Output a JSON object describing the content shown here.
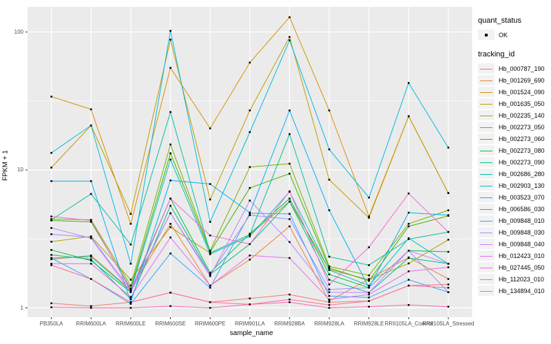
{
  "chart_data": {
    "type": "line",
    "title": "",
    "xlabel": "sample_name",
    "ylabel": "FPKM + 1",
    "y_scale": "log10",
    "ylim": [
      0.85,
      155
    ],
    "y_major_ticks": [
      1,
      10,
      100
    ],
    "y_major_labels": [
      "1",
      "10",
      "100"
    ],
    "y_minor_ticks": [
      3.1623,
      31.623
    ],
    "panel_background": "#EBEBEB",
    "grid_color": "#FFFFFF",
    "marker": {
      "shape": "square",
      "color": "#000000",
      "size": 2.6
    },
    "categories": [
      "PB350LA",
      "RRIM600LA",
      "RRIM600LE",
      "RRIM600SE",
      "RRIM600PE",
      "RRIM901LA",
      "RRIM928BA",
      "RRIM928LA",
      "RRIM928LE",
      "RRII105LA_Control",
      "RRII105LA_Stressed"
    ],
    "series": [
      {
        "name": "Hb_000787_190",
        "color": "#F8766D",
        "values": [
          1.08,
          1.03,
          1.1,
          1.29,
          1.1,
          1.17,
          1.25,
          1.1,
          1.12,
          1.45,
          1.48
        ]
      },
      {
        "name": "Hb_001269_690",
        "color": "#EA8331",
        "values": [
          2.25,
          2.4,
          1.35,
          4.07,
          1.45,
          2.24,
          3.9,
          1.12,
          1.62,
          2.32,
          1.62
        ]
      },
      {
        "name": "Hb_001524_090",
        "color": "#D89000",
        "values": [
          34,
          27.5,
          4.07,
          55,
          20,
          60,
          128,
          27,
          4.6,
          24.5,
          6.8
        ]
      },
      {
        "name": "Hb_001635_050",
        "color": "#C09B00",
        "values": [
          10.4,
          21,
          4.8,
          88,
          6.1,
          27,
          92,
          8.5,
          4.5,
          24.5,
          6.8
        ]
      },
      {
        "name": "Hb_002235_140",
        "color": "#A3A500",
        "values": [
          3.02,
          3.3,
          1.6,
          3.85,
          2.5,
          3.4,
          5.9,
          1.9,
          1.6,
          2.1,
          3.12
        ]
      },
      {
        "name": "Hb_002273_050",
        "color": "#7CAE00",
        "values": [
          4.4,
          4.35,
          1.45,
          15.3,
          2.6,
          10.5,
          11.1,
          2.0,
          1.72,
          4.07,
          5.1
        ]
      },
      {
        "name": "Hb_002273_060",
        "color": "#39B600",
        "values": [
          4.3,
          4.2,
          1.38,
          13.2,
          2.55,
          7.4,
          9.4,
          1.95,
          1.57,
          3.9,
          4.65
        ]
      },
      {
        "name": "Hb_002273_080",
        "color": "#00BB4E",
        "values": [
          2.63,
          2.2,
          1.3,
          6.2,
          1.8,
          3.45,
          6.2,
          1.75,
          1.4,
          2.6,
          2.55
        ]
      },
      {
        "name": "Hb_002273_090",
        "color": "#00BF7D",
        "values": [
          2.42,
          2.25,
          1.16,
          5.5,
          1.75,
          2.9,
          5.9,
          1.6,
          1.29,
          2.3,
          2.09
        ]
      },
      {
        "name": "Hb_002686_280",
        "color": "#00C1A3",
        "values": [
          4.35,
          6.7,
          2.88,
          26.3,
          2.5,
          3.4,
          18.2,
          2.35,
          2.04,
          3.15,
          3.55
        ]
      },
      {
        "name": "Hb_002903_130",
        "color": "#00BFC4",
        "values": [
          2.3,
          2.35,
          1.33,
          11.9,
          2.45,
          3.3,
          6.95,
          1.88,
          1.45,
          3.2,
          2.09
        ]
      },
      {
        "name": "Hb_003523_070",
        "color": "#00BAE0",
        "values": [
          13.3,
          21,
          2.09,
          102,
          4.2,
          18.8,
          87,
          14.1,
          6.3,
          42.7,
          14.5
        ]
      },
      {
        "name": "Hb_006586_030",
        "color": "#00B0F6",
        "values": [
          8.3,
          8.3,
          1.1,
          8.4,
          7.9,
          4.9,
          27,
          5.1,
          1.4,
          4.9,
          4.7
        ]
      },
      {
        "name": "Hb_009848_010",
        "color": "#35A2FF",
        "values": [
          2.3,
          1.62,
          1.07,
          2.48,
          1.4,
          4.85,
          4.8,
          1.22,
          1.19,
          1.6,
          1.3
        ]
      },
      {
        "name": "Hb_009848_030",
        "color": "#9590FF",
        "values": [
          3.42,
          3.25,
          1.35,
          4.85,
          1.75,
          4.7,
          4.4,
          1.36,
          1.4,
          2.6,
          1.3
        ]
      },
      {
        "name": "Hb_009848_040",
        "color": "#C77CFF",
        "values": [
          3.8,
          3.2,
          1.3,
          4.85,
          1.7,
          6.0,
          3.0,
          1.3,
          1.29,
          2.6,
          2.09
        ]
      },
      {
        "name": "Hb_012423_010",
        "color": "#E76BF3",
        "values": [
          2.09,
          2.09,
          1.2,
          3.24,
          1.45,
          2.4,
          2.3,
          1.15,
          1.25,
          1.84,
          1.97
        ]
      },
      {
        "name": "Hb_027445_050",
        "color": "#FA62DB",
        "values": [
          4.6,
          4.3,
          1.35,
          6.2,
          3.35,
          2.9,
          7.0,
          1.48,
          2.75,
          6.75,
          3.55
        ]
      },
      {
        "name": "Hb_112023_010",
        "color": "#FF62BC",
        "values": [
          1.01,
          1.0,
          1.0,
          1.03,
          1.0,
          1.06,
          1.1,
          1.0,
          1.02,
          1.05,
          1.02
        ]
      },
      {
        "name": "Hb_134894_010",
        "color": "#FF6A98",
        "values": [
          2.04,
          1.62,
          1.1,
          1.29,
          1.1,
          1.06,
          1.15,
          1.05,
          1.12,
          1.45,
          1.4
        ]
      }
    ],
    "legend_position": "right"
  },
  "legend": {
    "quant_status_title": "quant_status",
    "quant_status_items": [
      {
        "label": "OK",
        "symbol": "black-point"
      }
    ],
    "tracking_id_title": "tracking_id"
  },
  "axes": {
    "x_title": "sample_name",
    "y_title": "FPKM + 1"
  }
}
